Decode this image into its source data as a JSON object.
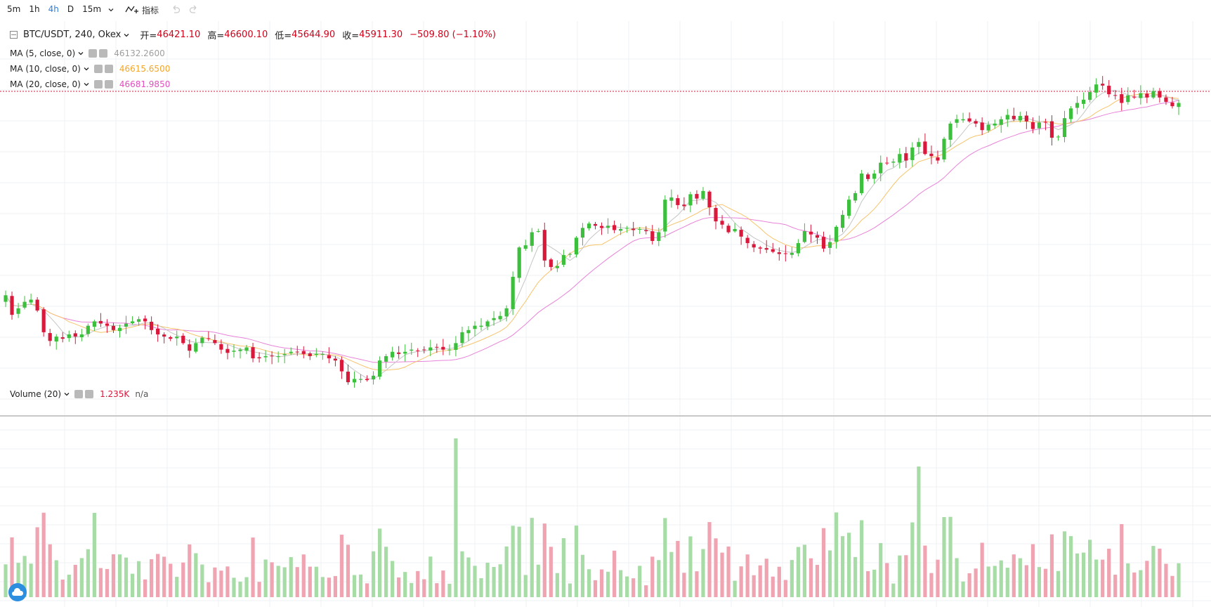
{
  "toolbar": {
    "timeframes": [
      "5m",
      "1h",
      "4h",
      "D",
      "15m"
    ],
    "active_timeframe": "4h",
    "indicators_label": "指标"
  },
  "symbol": {
    "label": "BTC/USDT, 240, Okex",
    "open_key": "开=",
    "open": "46421.10",
    "high_key": "高=",
    "high": "46600.10",
    "low_key": "低=",
    "low": "45644.90",
    "close_key": "收=",
    "close": "45911.30",
    "change": "−509.80 (−1.10%)"
  },
  "studies": [
    {
      "label": "MA (5, close, 0)",
      "value": "46132.2600",
      "color": "#9e9e9e"
    },
    {
      "label": "MA (10, close, 0)",
      "value": "46615.6500",
      "color": "#f5a623"
    },
    {
      "label": "MA (20, close, 0)",
      "value": "46681.9850",
      "color": "#e04fbf"
    }
  ],
  "volume": {
    "label": "Volume (20)",
    "value": "1.235K",
    "extra": "n/a"
  },
  "colors": {
    "up": "#3cbf3c",
    "down": "#d9183b",
    "vol_up": "#a7dca7",
    "vol_down": "#f0a3b0",
    "accent": "#2d7de0"
  },
  "chart_data": {
    "type": "candlestick",
    "price_series": [
      47500,
      46600,
      46900,
      47200,
      47300,
      46800,
      45800,
      45400,
      45600,
      45500,
      45700,
      45600,
      45700,
      46100,
      46300,
      46200,
      46100,
      45900,
      46000,
      46200,
      46300,
      46400,
      46300,
      45900,
      45700,
      45600,
      45500,
      45600,
      45300,
      44950,
      45300,
      45550,
      45500,
      45300,
      45000,
      44850,
      44950,
      45000,
      45100,
      44600,
      44600,
      44700,
      44700,
      44700,
      44800,
      44900,
      44900,
      44800,
      44700,
      44800,
      44800,
      44600,
      44500,
      44000,
      43500,
      43650,
      43650,
      43600,
      43800,
      44500,
      44700,
      44900,
      44800,
      44900,
      45000,
      44950,
      45000,
      45100,
      45100,
      45000,
      45000,
      45300,
      45800,
      45900,
      46100,
      46100,
      46300,
      46450,
      46550,
      46900,
      48350,
      49700,
      49800,
      50400,
      50450,
      49100,
      48800,
      48850,
      49350,
      49400,
      50150,
      50600,
      50800,
      50700,
      50600,
      50700,
      50500,
      50550,
      50600,
      50500,
      50550,
      50450,
      50000,
      50400,
      51900,
      52000,
      51650,
      51600,
      52150,
      51950,
      52300,
      51550,
      50900,
      50750,
      50400,
      50550,
      50200,
      49900,
      49700,
      49650,
      49600,
      49500,
      49400,
      49400,
      49450,
      49900,
      50450,
      50300,
      50150,
      49650,
      49950,
      50650,
      51200,
      51900,
      52200,
      53100,
      52850,
      53100,
      53600,
      53600,
      53650,
      54000,
      53700,
      54300,
      54550,
      54000,
      53900,
      53700,
      54700,
      55400,
      55600,
      55600,
      55500,
      55400,
      55100,
      55350,
      55400,
      55600,
      55800,
      55600,
      55750,
      55500,
      55150,
      55450,
      55450,
      54750,
      54800,
      55650,
      56100,
      56350,
      56500,
      56850,
      57200,
      57150,
      56750,
      56700,
      56350,
      56700,
      56600,
      56800,
      56600,
      56900,
      56600,
      56400,
      56200,
      56350
    ]
  }
}
